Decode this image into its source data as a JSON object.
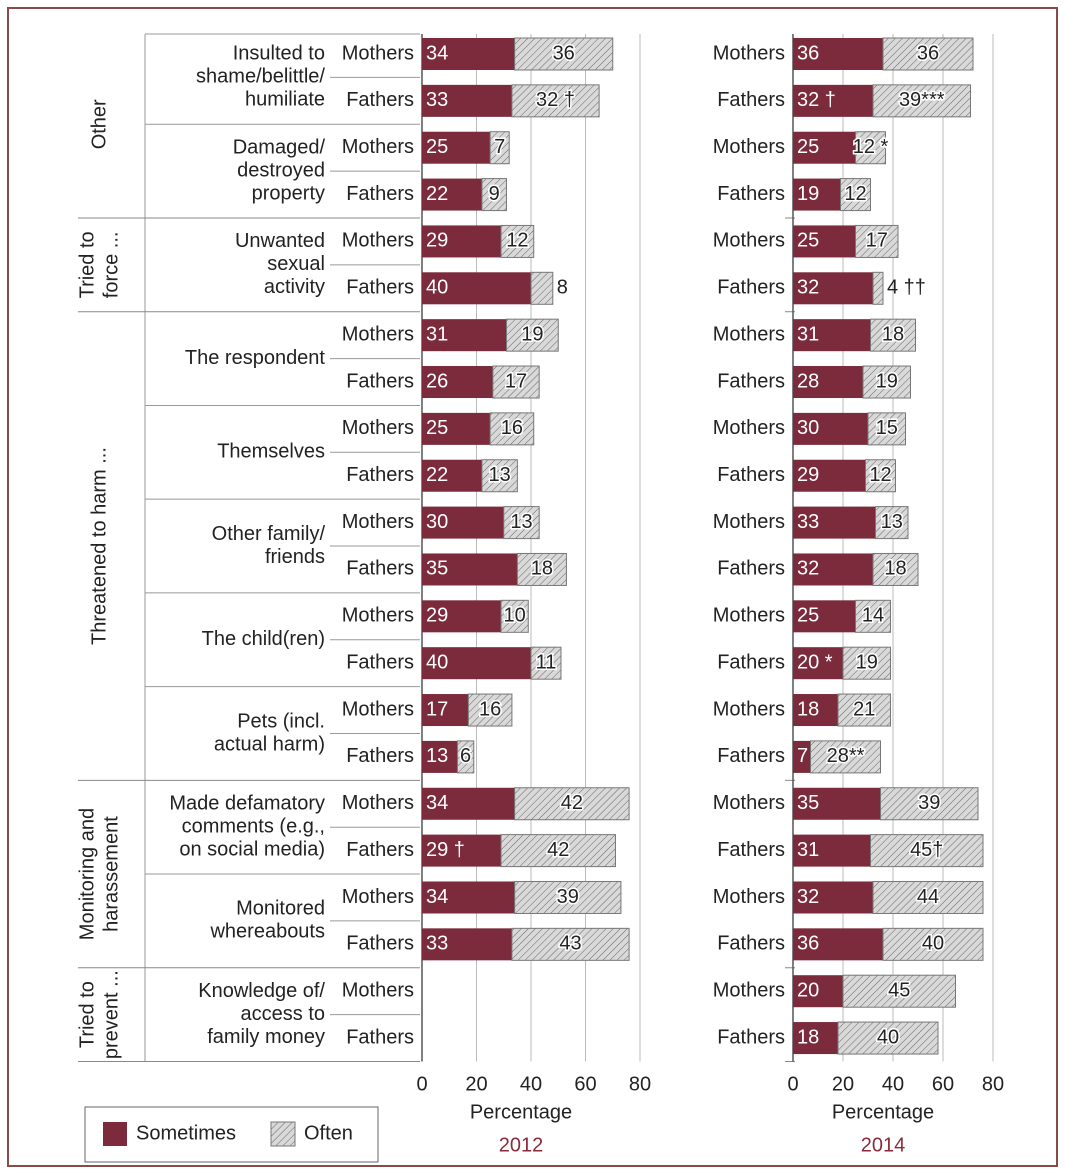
{
  "groups": [
    {
      "label": [
        "Other"
      ],
      "subgroups": [
        [
          "Insulted to",
          "shame/belittle/",
          "humiliate"
        ],
        [
          "Damaged/",
          "destroyed",
          "property"
        ]
      ]
    },
    {
      "label": [
        "Tried to",
        "force ..."
      ],
      "subgroups": [
        [
          "Unwanted",
          "sexual",
          "activity"
        ]
      ]
    },
    {
      "label": [
        "Threatened to harm ..."
      ],
      "subgroups": [
        [
          "The respondent"
        ],
        [
          "Themselves"
        ],
        [
          "Other family/",
          "friends"
        ],
        [
          "The child(ren)"
        ],
        [
          "Pets (incl.",
          "actual harm)"
        ]
      ]
    },
    {
      "label": [
        "Monitoring and",
        "harassement"
      ],
      "subgroups": [
        [
          "Made defamatory",
          "comments (e.g.,",
          "on social media)"
        ],
        [
          "Monitored",
          "whereabouts"
        ]
      ]
    },
    {
      "label": [
        "Tried to",
        "prevent ..."
      ],
      "subgroups": [
        [
          "Knowledge of/",
          "access to",
          "family money"
        ]
      ]
    }
  ],
  "chart_data": [
    {
      "type": "bar",
      "orientation": "horizontal",
      "stacked": true,
      "title": "2012",
      "xlabel": "Percentage",
      "categories": [
        "Mothers",
        "Fathers",
        "Mothers",
        "Fathers",
        "Mothers",
        "Fathers",
        "Mothers",
        "Fathers",
        "Mothers",
        "Fathers",
        "Mothers",
        "Fathers",
        "Mothers",
        "Fathers",
        "Mothers",
        "Fathers",
        "Mothers",
        "Fathers",
        "Mothers",
        "Fathers",
        "Mothers",
        "Fathers"
      ],
      "xlim": [
        0,
        80
      ],
      "xticks": [
        0,
        20,
        40,
        60,
        80
      ],
      "grid": true,
      "series": [
        {
          "name": "Sometimes",
          "color": "#7b2b3b",
          "values": [
            34,
            33,
            25,
            22,
            29,
            40,
            31,
            26,
            25,
            22,
            30,
            35,
            29,
            40,
            17,
            13,
            34,
            29,
            34,
            33,
            null,
            null
          ],
          "value_labels": [
            "34",
            "33",
            "25",
            "22",
            "29",
            "40",
            "31",
            "26",
            "25",
            "22",
            "30",
            "35",
            "29",
            "40",
            "17",
            "13",
            "34",
            "29 †",
            "34",
            "33",
            null,
            null
          ]
        },
        {
          "name": "Often",
          "color": "#d9d9d9",
          "pattern": "hatch",
          "values": [
            36,
            32,
            7,
            9,
            12,
            8,
            19,
            17,
            16,
            13,
            13,
            18,
            10,
            11,
            16,
            6,
            42,
            42,
            39,
            43,
            null,
            null
          ],
          "value_labels": [
            "36",
            "32 †",
            "7",
            "9",
            "12",
            "8",
            "19",
            "17",
            "16",
            "13",
            "13",
            "18",
            "10",
            "11",
            "16",
            "6",
            "42",
            "42",
            "39",
            "43",
            null,
            null
          ]
        }
      ]
    },
    {
      "type": "bar",
      "orientation": "horizontal",
      "stacked": true,
      "title": "2014",
      "xlabel": "Percentage",
      "categories": [
        "Mothers",
        "Fathers",
        "Mothers",
        "Fathers",
        "Mothers",
        "Fathers",
        "Mothers",
        "Fathers",
        "Mothers",
        "Fathers",
        "Mothers",
        "Fathers",
        "Mothers",
        "Fathers",
        "Mothers",
        "Fathers",
        "Mothers",
        "Fathers",
        "Mothers",
        "Fathers",
        "Mothers",
        "Fathers"
      ],
      "xlim": [
        0,
        80
      ],
      "xticks": [
        0,
        20,
        40,
        60,
        80
      ],
      "grid": true,
      "series": [
        {
          "name": "Sometimes",
          "color": "#7b2b3b",
          "values": [
            36,
            32,
            25,
            19,
            25,
            32,
            31,
            28,
            30,
            29,
            33,
            32,
            25,
            20,
            18,
            7,
            35,
            31,
            32,
            36,
            20,
            18
          ],
          "value_labels": [
            "36",
            "32 †",
            "25",
            "19",
            "25",
            "32",
            "31",
            "28",
            "30",
            "29",
            "33",
            "32",
            "25",
            "20 *",
            "18",
            "7",
            "35",
            "31",
            "32",
            "36",
            "20",
            "18"
          ]
        },
        {
          "name": "Often",
          "color": "#d9d9d9",
          "pattern": "hatch",
          "values": [
            36,
            39,
            12,
            12,
            17,
            4,
            18,
            19,
            15,
            12,
            13,
            18,
            14,
            19,
            21,
            28,
            39,
            45,
            44,
            40,
            45,
            40
          ],
          "value_labels": [
            "36",
            "39***",
            "12 *",
            "12",
            "17",
            "4 ††",
            "18",
            "19",
            "15",
            "12",
            "13",
            "18",
            "14",
            "19",
            "21",
            "28**",
            "39",
            "45†",
            "44",
            "40",
            "45",
            "40"
          ]
        }
      ]
    }
  ]
}
